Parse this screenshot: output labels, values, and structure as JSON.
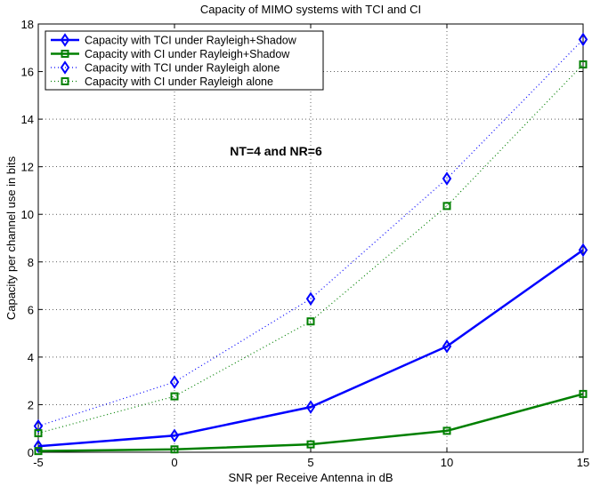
{
  "chart_data": {
    "type": "line",
    "title": "Capacity of MIMO systems with TCI and CI",
    "xlabel": "SNR per Receive Antenna in dB",
    "ylabel": "Capacity per channel use in bits",
    "xlim": [
      -5,
      15
    ],
    "ylim": [
      0,
      18
    ],
    "xticks": [
      -5,
      0,
      5,
      10,
      15
    ],
    "yticks": [
      0,
      2,
      4,
      6,
      8,
      10,
      12,
      14,
      16,
      18
    ],
    "grid": true,
    "legend_position": "top-left",
    "x": [
      -5,
      0,
      5,
      10,
      15
    ],
    "annotation": "NT=4 and NR=6",
    "series": [
      {
        "name": "Capacity with TCI under Rayleigh+Shadow",
        "values": [
          0.25,
          0.7,
          1.9,
          4.45,
          8.5
        ],
        "color": "#0000ff",
        "line": "solid",
        "marker": "diamond"
      },
      {
        "name": "Capacity with CI under Rayleigh+Shadow",
        "values": [
          0.05,
          0.12,
          0.33,
          0.9,
          2.45
        ],
        "color": "#008000",
        "line": "solid",
        "marker": "square"
      },
      {
        "name": "Capacity with TCI under Rayleigh alone",
        "values": [
          1.1,
          2.95,
          6.45,
          11.5,
          17.35
        ],
        "color": "#0000ff",
        "line": "dotted",
        "marker": "diamond"
      },
      {
        "name": "Capacity with CI under Rayleigh alone",
        "values": [
          0.8,
          2.35,
          5.5,
          10.35,
          16.3
        ],
        "color": "#008000",
        "line": "dotted",
        "marker": "square"
      }
    ]
  }
}
